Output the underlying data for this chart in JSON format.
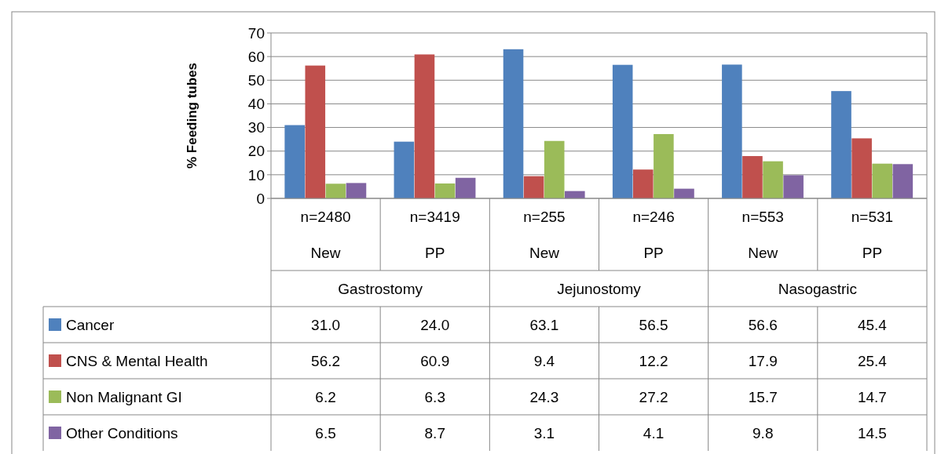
{
  "chart_data": {
    "type": "bar",
    "ylabel": "% Feeding tubes",
    "categories": [
      "n=2480",
      "n=3419",
      "n=255",
      "n=246",
      "n=553",
      "n=531"
    ],
    "annotations": [
      "New",
      "PP",
      "New",
      "PP",
      "New",
      "PP",
      "Gastrostomy",
      "Jejunostomy",
      "Nasogastric"
    ],
    "series": [
      {
        "name": "Cancer",
        "color": "#4f81bd",
        "values": [
          31.0,
          24.0,
          63.1,
          56.5,
          56.6,
          45.4
        ],
        "value_labels": [
          "31.0",
          "24.0",
          "63.1",
          "56.5",
          "56.6",
          "45.4"
        ]
      },
      {
        "name": "CNS & Mental Health",
        "color": "#c0504d",
        "values": [
          56.2,
          60.9,
          9.4,
          12.2,
          17.9,
          25.4
        ],
        "value_labels": [
          "56.2",
          "60.9",
          "9.4",
          "12.2",
          "17.9",
          "25.4"
        ]
      },
      {
        "name": "Non Malignant  GI",
        "color": "#9bbb59",
        "values": [
          6.2,
          6.3,
          24.3,
          27.2,
          15.7,
          14.7
        ],
        "value_labels": [
          "6.2",
          "6.3",
          "24.3",
          "27.2",
          "15.7",
          "14.7"
        ]
      },
      {
        "name": "Other Conditions",
        "color": "#8064a2",
        "values": [
          6.5,
          8.7,
          3.1,
          4.1,
          9.8,
          14.5
        ],
        "value_labels": [
          "6.5",
          "8.7",
          "3.1",
          "4.1",
          "9.8",
          "14.5"
        ]
      }
    ],
    "ylim": [
      0,
      70
    ],
    "yticks": [
      0,
      10,
      20,
      30,
      40,
      50,
      60,
      70
    ],
    "grid": "y",
    "legend": "bottom"
  }
}
